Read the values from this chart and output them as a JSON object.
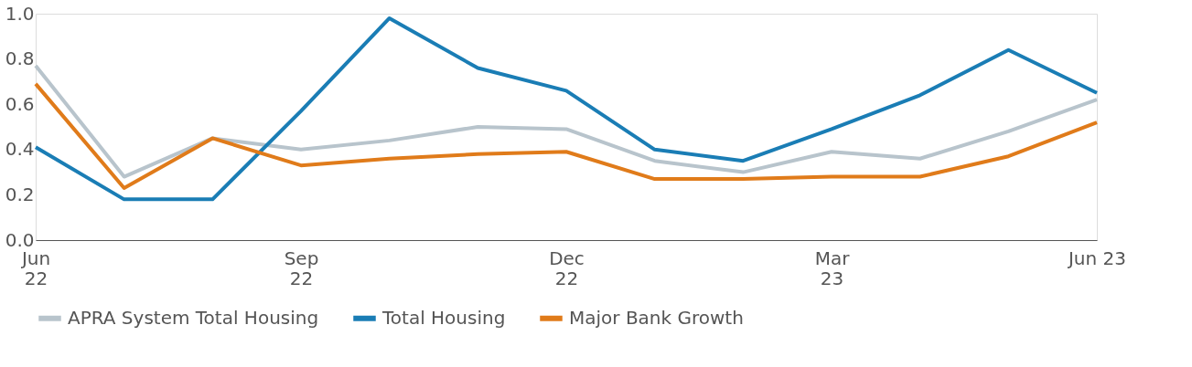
{
  "chart_data": {
    "type": "line",
    "categories": [
      "Jun 22",
      null,
      null,
      "Sep 22",
      null,
      null,
      "Dec 22",
      null,
      null,
      "Mar 23",
      null,
      null,
      "Jun 23"
    ],
    "series": [
      {
        "name": "APRA System Total Housing",
        "color": "#b8c4cc",
        "values": [
          0.77,
          0.28,
          0.45,
          0.4,
          0.44,
          0.5,
          0.49,
          0.35,
          0.3,
          0.39,
          0.36,
          0.48,
          0.62
        ]
      },
      {
        "name": "Total Housing",
        "color": "#1a7db5",
        "values": [
          0.41,
          0.18,
          0.18,
          0.57,
          0.98,
          0.76,
          0.66,
          0.4,
          0.35,
          0.49,
          0.64,
          0.84,
          0.65
        ]
      },
      {
        "name": "Major Bank Growth",
        "color": "#e07b1a",
        "values": [
          0.69,
          0.23,
          0.45,
          0.33,
          0.36,
          0.38,
          0.39,
          0.27,
          0.27,
          0.28,
          0.28,
          0.37,
          0.52
        ]
      }
    ],
    "ylim": [
      0,
      1
    ],
    "yticks": [
      {
        "value": 0,
        "label": "0.0"
      },
      {
        "value": 0.2,
        "label": "0.2"
      },
      {
        "value": 0.4,
        "label": "0.4"
      },
      {
        "value": 0.6,
        "label": "0.6"
      },
      {
        "value": 0.8,
        "label": "0.8"
      },
      {
        "value": 1,
        "label": "1.0"
      }
    ],
    "grid": false,
    "legend": "bottom",
    "marker": "none",
    "line_style": "solid"
  }
}
